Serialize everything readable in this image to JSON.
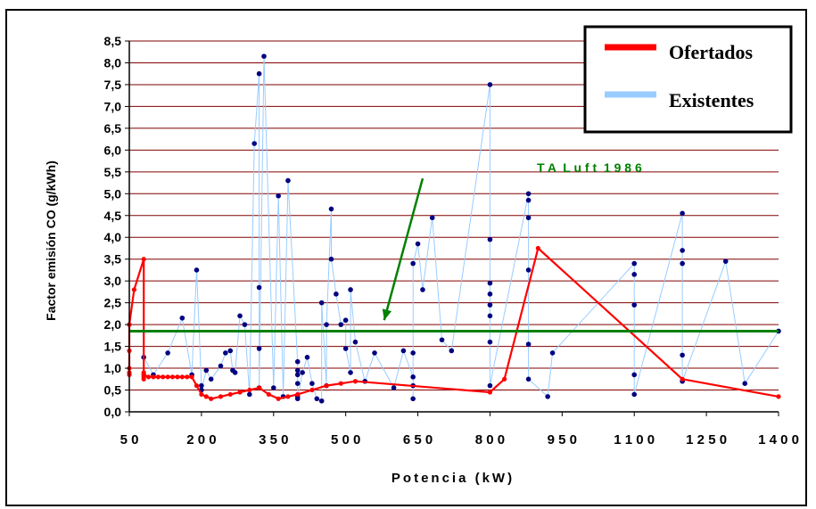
{
  "chart_data": {
    "type": "line",
    "xlabel": "Potencia (kW)",
    "ylabel": "Factor emisión CO (g/kWh)",
    "xlim": [
      50,
      1400
    ],
    "ylim": [
      0,
      8.5
    ],
    "x_ticks": [
      50,
      200,
      350,
      500,
      650,
      800,
      950,
      1100,
      1250,
      1400
    ],
    "x_tick_labels": [
      "5 0",
      "2 0 0",
      "3 5 0",
      "5 0 0",
      "6 5 0",
      "8 0 0",
      "9 5 0",
      "1 1 0 0",
      "1 2 5 0",
      "1 4 0 0"
    ],
    "y_ticks": [
      0,
      0.5,
      1,
      1.5,
      2,
      2.5,
      3,
      3.5,
      4,
      4.5,
      5,
      5.5,
      6,
      6.5,
      7,
      7.5,
      8,
      8.5
    ],
    "y_tick_labels": [
      "0,0",
      "0,5",
      "1,0",
      "1,5",
      "2,0",
      "2,5",
      "3,0",
      "3,5",
      "4,0",
      "4,5",
      "5,0",
      "5,5",
      "6,0",
      "6,5",
      "7,0",
      "7,5",
      "8,0",
      "8,5"
    ],
    "grid": "horizontal",
    "legend_position": "top-right",
    "colors": {
      "ofertados": "#ff0000",
      "existentes": "#99ccff",
      "existentes_marker": "#000080",
      "ta_luft": "#008000",
      "grid": "#800000",
      "plot_bg": "#ffffff"
    },
    "series": [
      {
        "name": "Ofertados",
        "x": [
          50,
          50,
          50,
          50,
          50,
          50,
          60,
          80,
          80,
          80,
          80,
          80,
          80,
          90,
          100,
          110,
          120,
          130,
          140,
          150,
          160,
          170,
          180,
          190,
          200,
          210,
          220,
          240,
          260,
          280,
          300,
          320,
          340,
          360,
          380,
          400,
          430,
          460,
          490,
          520,
          800,
          830,
          900,
          1200,
          1400
        ],
        "y": [
          2.0,
          1.4,
          1.0,
          0.85,
          0.9,
          2.0,
          2.8,
          3.5,
          0.9,
          0.85,
          0.75,
          0.8,
          0.85,
          0.8,
          0.8,
          0.8,
          0.8,
          0.8,
          0.8,
          0.8,
          0.8,
          0.8,
          0.8,
          0.6,
          0.4,
          0.35,
          0.3,
          0.35,
          0.4,
          0.45,
          0.5,
          0.55,
          0.4,
          0.3,
          0.35,
          0.4,
          0.5,
          0.6,
          0.65,
          0.7,
          0.45,
          0.75,
          3.75,
          0.75,
          0.35
        ]
      },
      {
        "name": "Existentes",
        "x": [
          80,
          100,
          130,
          160,
          180,
          190,
          200,
          200,
          210,
          220,
          240,
          250,
          260,
          265,
          270,
          280,
          290,
          300,
          310,
          320,
          320,
          320,
          320,
          330,
          350,
          360,
          370,
          380,
          400,
          400,
          400,
          400,
          400,
          400,
          410,
          420,
          430,
          440,
          450,
          450,
          460,
          460,
          470,
          470,
          480,
          490,
          500,
          500,
          510,
          510,
          520,
          540,
          560,
          600,
          620,
          640,
          640,
          640,
          640,
          640,
          650,
          660,
          680,
          700,
          720,
          800,
          800,
          800,
          800,
          800,
          800,
          800,
          800,
          880,
          880,
          880,
          880,
          880,
          880,
          920,
          930,
          1100,
          1100,
          1100,
          1100,
          1100,
          1200,
          1200,
          1200,
          1200,
          1200,
          1290,
          1330,
          1400
        ],
        "y": [
          1.25,
          0.85,
          1.35,
          2.15,
          0.85,
          3.25,
          0.6,
          0.5,
          0.95,
          0.75,
          1.05,
          1.35,
          1.4,
          0.95,
          0.9,
          2.2,
          2.0,
          0.4,
          6.15,
          7.75,
          2.85,
          1.45,
          0.55,
          8.15,
          0.55,
          4.95,
          0.35,
          5.3,
          1.15,
          0.95,
          0.85,
          0.65,
          0.35,
          0.3,
          0.9,
          1.25,
          0.65,
          0.3,
          0.25,
          2.5,
          0.6,
          2.0,
          4.65,
          3.5,
          2.7,
          2.0,
          2.1,
          1.45,
          0.9,
          2.8,
          1.6,
          0.7,
          1.35,
          0.55,
          1.4,
          0.8,
          0.6,
          0.3,
          1.35,
          3.4,
          3.85,
          2.8,
          4.45,
          1.65,
          1.4,
          7.5,
          3.95,
          2.95,
          2.7,
          2.45,
          2.2,
          1.6,
          0.6,
          5.0,
          4.85,
          4.45,
          3.25,
          1.55,
          0.75,
          0.35,
          1.35,
          3.4,
          3.15,
          2.45,
          0.85,
          0.4,
          4.55,
          3.7,
          3.4,
          1.3,
          0.7,
          3.45,
          0.65,
          1.85
        ]
      }
    ],
    "reference_line": {
      "label": "TA Luft 1986",
      "display_label": "T A  L u f t  1 9 8 6",
      "y": 1.85
    },
    "annotation": {
      "from": [
        660,
        5.35
      ],
      "to": [
        580,
        2.1
      ]
    }
  }
}
